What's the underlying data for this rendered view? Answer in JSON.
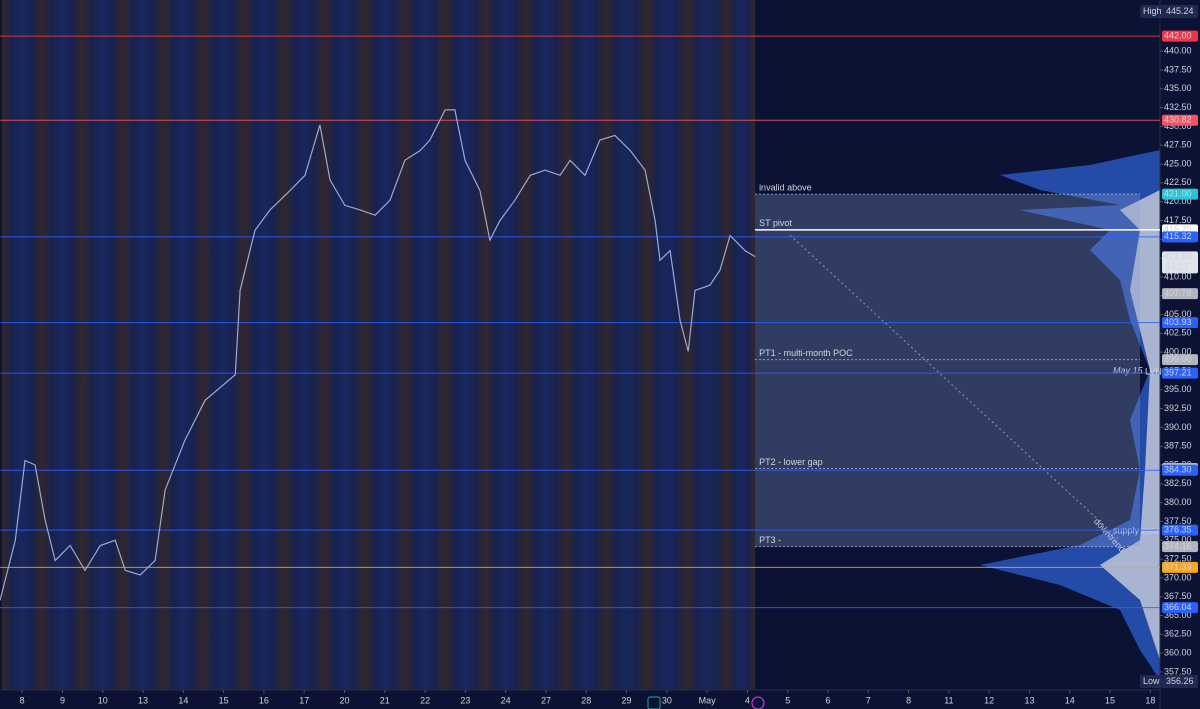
{
  "chart_data": {
    "type": "line",
    "xlim": [
      -0.55,
      28.24
    ],
    "ylim": [
      355.1,
      446.8
    ],
    "xticks": [
      {
        "value": 0,
        "label": "8"
      },
      {
        "value": 1,
        "label": "9"
      },
      {
        "value": 2,
        "label": "10"
      },
      {
        "value": 3,
        "label": "13"
      },
      {
        "value": 4,
        "label": "14"
      },
      {
        "value": 5,
        "label": "15"
      },
      {
        "value": 6,
        "label": "16"
      },
      {
        "value": 7,
        "label": "17"
      },
      {
        "value": 8,
        "label": "20"
      },
      {
        "value": 9,
        "label": "21"
      },
      {
        "value": 10,
        "label": "22"
      },
      {
        "value": 11,
        "label": "23"
      },
      {
        "value": 12,
        "label": "24"
      },
      {
        "value": 13,
        "label": "27"
      },
      {
        "value": 14,
        "label": "28"
      },
      {
        "value": 15,
        "label": "29"
      },
      {
        "value": 16,
        "label": "30"
      },
      {
        "value": 17,
        "label": "May"
      },
      {
        "value": 18,
        "label": "4"
      },
      {
        "value": 19,
        "label": "5"
      },
      {
        "value": 20,
        "label": "6"
      },
      {
        "value": 21,
        "label": "7"
      },
      {
        "value": 22,
        "label": "8"
      },
      {
        "value": 23,
        "label": "11"
      },
      {
        "value": 24,
        "label": "12"
      },
      {
        "value": 25,
        "label": "13"
      },
      {
        "value": 26,
        "label": "14"
      },
      {
        "value": 27,
        "label": "15"
      },
      {
        "value": 28,
        "label": "18"
      }
    ],
    "yticks": [
      {
        "value": 357.5,
        "label": "357.50"
      },
      {
        "value": 360,
        "label": "360.00"
      },
      {
        "value": 362.5,
        "label": "362.50"
      },
      {
        "value": 365,
        "label": "365.00"
      },
      {
        "value": 367.5,
        "label": "367.50"
      },
      {
        "value": 370,
        "label": "370.00"
      },
      {
        "value": 372.5,
        "label": "372.50"
      },
      {
        "value": 375,
        "label": "375.00"
      },
      {
        "value": 377.5,
        "label": "377.50"
      },
      {
        "value": 380,
        "label": "380.00"
      },
      {
        "value": 382.5,
        "label": "382.50"
      },
      {
        "value": 385,
        "label": "385.00"
      },
      {
        "value": 387.5,
        "label": "387.50"
      },
      {
        "value": 390,
        "label": "390.00"
      },
      {
        "value": 392.5,
        "label": "392.50"
      },
      {
        "value": 395,
        "label": "395.00"
      },
      {
        "value": 397.5,
        "label": "397.50"
      },
      {
        "value": 400,
        "label": "400.00"
      },
      {
        "value": 402.5,
        "label": "402.50"
      },
      {
        "value": 405,
        "label": "405.00"
      },
      {
        "value": 407.5,
        "label": "407.50"
      },
      {
        "value": 410,
        "label": "410.00"
      },
      {
        "value": 412.5,
        "label": "412.50"
      },
      {
        "value": 415,
        "label": "415.00"
      },
      {
        "value": 417.5,
        "label": "417.50"
      },
      {
        "value": 420,
        "label": "420.00"
      },
      {
        "value": 422.5,
        "label": "422.50"
      },
      {
        "value": 425,
        "label": "425.00"
      },
      {
        "value": 427.5,
        "label": "427.50"
      },
      {
        "value": 430,
        "label": "430.00"
      },
      {
        "value": 432.5,
        "label": "432.50"
      },
      {
        "value": 435,
        "label": "435.00"
      },
      {
        "value": 437.5,
        "label": "437.50"
      },
      {
        "value": 440,
        "label": "440.00"
      }
    ],
    "series": [
      {
        "color": "#9aa9d6",
        "x": [
          -0.55,
          -0.17,
          0.07,
          0.32,
          0.57,
          0.82,
          1.19,
          1.56,
          1.94,
          2.31,
          2.56,
          2.93,
          3.3,
          3.55,
          4.04,
          4.54,
          5.29,
          5.41,
          5.78,
          6.15,
          6.65,
          7.02,
          7.39,
          7.64,
          8.01,
          8.39,
          8.76,
          9.13,
          9.5,
          9.88,
          10.12,
          10.5,
          10.74,
          10.99,
          11.36,
          11.61,
          11.86,
          12.23,
          12.61,
          12.98,
          13.35,
          13.6,
          13.97,
          14.34,
          14.71,
          15.09,
          15.46,
          15.71,
          15.83,
          16.08,
          16.33,
          16.53,
          16.7,
          17.07,
          17.32,
          17.57,
          17.94,
          18.19
        ],
        "values": [
          367,
          375,
          385.6,
          385,
          377.7,
          372.3,
          374.3,
          371,
          374.3,
          375,
          371,
          370.4,
          372.3,
          381.7,
          388.3,
          393.6,
          397,
          408.2,
          416.2,
          418.9,
          421.5,
          423.5,
          430.2,
          422.9,
          419.5,
          418.9,
          418.2,
          420.2,
          425.5,
          426.8,
          428.2,
          432.2,
          432.2,
          425.5,
          421.5,
          414.9,
          417.5,
          420.2,
          423.5,
          424.2,
          423.5,
          425.5,
          423.5,
          428.2,
          428.8,
          426.8,
          424.2,
          417.5,
          412.2,
          413.5,
          404.2,
          400.1,
          408.2,
          408.9,
          410.9,
          415.5,
          413.5,
          412.7
        ]
      }
    ],
    "levels": [
      {
        "value": 442.0,
        "label": "442.00",
        "color": "#f23645",
        "line": "full"
      },
      {
        "value": 430.82,
        "label": "430.82",
        "color": "#f7525f",
        "line": "full"
      },
      {
        "value": 421.0,
        "label": "421.00",
        "color": "#26c6da",
        "line": "none",
        "note": "invalid above"
      },
      {
        "value": 416.25,
        "label": "416.25",
        "color": "#ffffff",
        "line": "zone",
        "note": "ST pivot"
      },
      {
        "value": 415.32,
        "label": "415.32",
        "color": "#2962ff",
        "line": "full"
      },
      {
        "value": 412.66,
        "label": "412.66",
        "color": "#e0e3eb",
        "line": "none",
        "countdown": "18:21"
      },
      {
        "value": 407.78,
        "label": "407.78",
        "color": "#b2b5be",
        "line": "none"
      },
      {
        "value": 403.93,
        "label": "403.93",
        "color": "#2962ff",
        "line": "full"
      },
      {
        "value": 399.0,
        "label": "399.00",
        "color": "#b2b5be",
        "line": "none",
        "note": "PT1 - multi-month POC"
      },
      {
        "value": 397.21,
        "label": "397.21",
        "color": "#2962ff",
        "line": "full"
      },
      {
        "value": 384.54,
        "label": "384.54",
        "color": "#b2b5be",
        "line": "none",
        "note": "PT2 - lower gap"
      },
      {
        "value": 384.3,
        "label": "384.30",
        "color": "#2962ff",
        "line": "full"
      },
      {
        "value": 376.35,
        "label": "376.35",
        "color": "#2962ff",
        "line": "full"
      },
      {
        "value": 374.16,
        "label": "374.16",
        "color": "#b2b5be",
        "line": "none",
        "note": "PT3 -"
      },
      {
        "value": 371.39,
        "label": "371.39",
        "color": "#f5a623",
        "line": "full"
      },
      {
        "value": 366.04,
        "label": "366.04",
        "color": "#2962ff",
        "line": "full"
      }
    ],
    "high": {
      "name": "High",
      "value": 445.24,
      "label": "445.24"
    },
    "low": {
      "name": "Low",
      "value": 356.26,
      "label": "356.26"
    },
    "annotations": [
      "May 15",
      "LVN",
      "supply zone",
      "downtrend"
    ]
  }
}
